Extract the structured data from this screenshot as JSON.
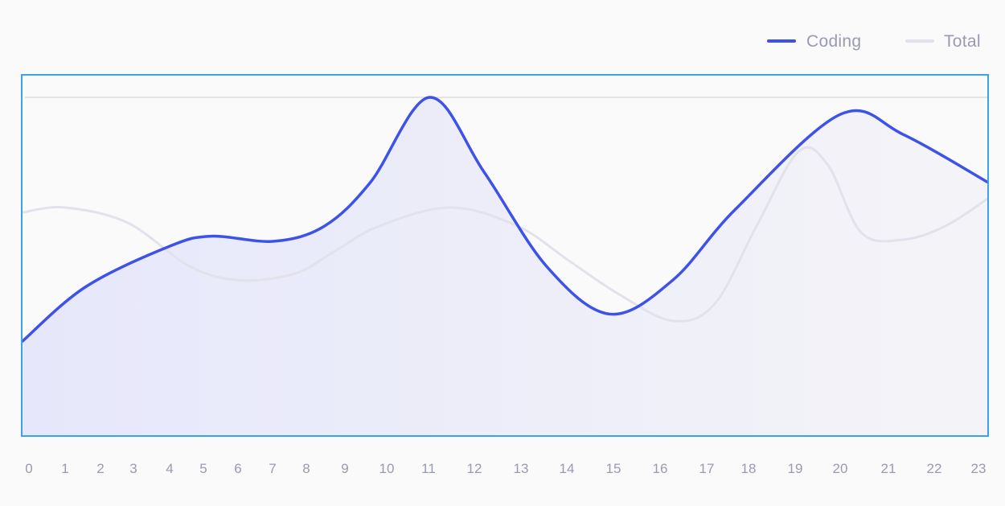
{
  "chart_data": {
    "type": "area",
    "title": "",
    "xlabel": "",
    "ylabel": "",
    "x": [
      "0",
      "1",
      "2",
      "3",
      "4",
      "5",
      "6",
      "7",
      "8",
      "9",
      "10",
      "11",
      "12",
      "13",
      "14",
      "15",
      "16",
      "17",
      "18",
      "19",
      "20",
      "21",
      "22",
      "23"
    ],
    "ylim": [
      0,
      100
    ],
    "grid": false,
    "legend_position": "top-right",
    "series": [
      {
        "name": "Coding",
        "color": "#3d52e8",
        "fill": true,
        "points": [
          [
            0,
            28
          ],
          [
            1.5,
            44
          ],
          [
            3.5,
            56
          ],
          [
            4.5,
            59
          ],
          [
            6,
            57.5
          ],
          [
            7.2,
            62
          ],
          [
            8.3,
            75
          ],
          [
            9.7,
            100
          ],
          [
            11,
            78
          ],
          [
            12.5,
            50
          ],
          [
            14,
            36
          ],
          [
            15.5,
            46
          ],
          [
            17,
            67
          ],
          [
            19.5,
            95
          ],
          [
            21,
            89
          ],
          [
            23,
            75
          ]
        ]
      },
      {
        "name": "Total",
        "color": "#e2e2ec",
        "fill": false,
        "points": [
          [
            0,
            66
          ],
          [
            1,
            67.5
          ],
          [
            2.5,
            63
          ],
          [
            4,
            50
          ],
          [
            5.2,
            46
          ],
          [
            6.5,
            48
          ],
          [
            7.5,
            55
          ],
          [
            8.5,
            62
          ],
          [
            10.2,
            67.5
          ],
          [
            11.8,
            62
          ],
          [
            13,
            52
          ],
          [
            14.2,
            42
          ],
          [
            15.5,
            34
          ],
          [
            16.5,
            39
          ],
          [
            17.5,
            62
          ],
          [
            18.5,
            84
          ],
          [
            19.2,
            80
          ],
          [
            20,
            60
          ],
          [
            21,
            58
          ],
          [
            22,
            62
          ],
          [
            23,
            70
          ]
        ]
      }
    ],
    "reference_line": 100
  },
  "legend": {
    "items": [
      {
        "label": "Coding",
        "color": "#3d52e8"
      },
      {
        "label": "Total",
        "color": "#e2e2ec"
      }
    ]
  },
  "colors": {
    "frame": "#3aa3e8",
    "reference_line": "#dcdcdc",
    "tick_label": "#9a9ab0",
    "legend_label": "#9a9ab0",
    "fill_start": "#e6e7fa",
    "fill_end": "#f4f4f8"
  }
}
